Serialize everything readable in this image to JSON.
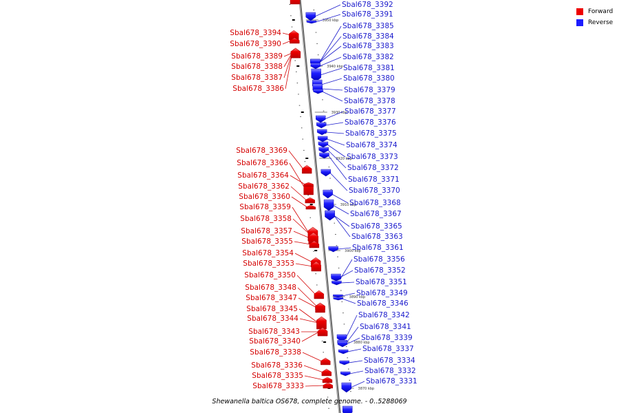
{
  "caption": "Shewanella baltica OS678, complete genome. - 0..5288069",
  "legend": [
    {
      "label": "Forward",
      "color": "#ee0000"
    },
    {
      "label": "Reverse",
      "color": "#1c1cff"
    }
  ],
  "ticks": [
    "3950 kbp",
    "3940 kbp",
    "3930 kbp",
    "3920 kbp",
    "3910 kbp",
    "3900 kbp",
    "3890 kbp",
    "3880 kbp",
    "3870 kbp"
  ],
  "forward_genes": [
    "Sbal678_3394",
    "Sbal678_3390",
    "Sbal678_3389",
    "Sbal678_3388",
    "Sbal678_3387",
    "Sbal678_3386",
    "Sbal678_3369",
    "Sbal678_3366",
    "Sbal678_3364",
    "Sbal678_3362",
    "Sbal678_3360",
    "Sbal678_3359",
    "Sbal678_3358",
    "Sbal678_3357",
    "Sbal678_3355",
    "Sbal678_3354",
    "Sbal678_3353",
    "Sbal678_3350",
    "Sbal678_3348",
    "Sbal678_3347",
    "Sbal678_3345",
    "Sbal678_3344",
    "Sbal678_3343",
    "Sbal678_3340",
    "Sbal678_3338",
    "Sbal678_3336",
    "Sbal678_3335",
    "Sbal678_3333"
  ],
  "reverse_genes": [
    "Sbal678_3392",
    "Sbal678_3391",
    "Sbal678_3385",
    "Sbal678_3384",
    "Sbal678_3383",
    "Sbal678_3382",
    "Sbal678_3381",
    "Sbal678_3380",
    "Sbal678_3379",
    "Sbal678_3378",
    "Sbal678_3377",
    "Sbal678_3376",
    "Sbal678_3375",
    "Sbal678_3374",
    "Sbal678_3373",
    "Sbal678_3372",
    "Sbal678_3371",
    "Sbal678_3370",
    "Sbal678_3368",
    "Sbal678_3367",
    "Sbal678_3365",
    "Sbal678_3363",
    "Sbal678_3361",
    "Sbal678_3356",
    "Sbal678_3352",
    "Sbal678_3351",
    "Sbal678_3349",
    "Sbal678_3346",
    "Sbal678_3342",
    "Sbal678_3341",
    "Sbal678_3339",
    "Sbal678_3337",
    "Sbal678_3334",
    "Sbal678_3332",
    "Sbal678_3331"
  ]
}
